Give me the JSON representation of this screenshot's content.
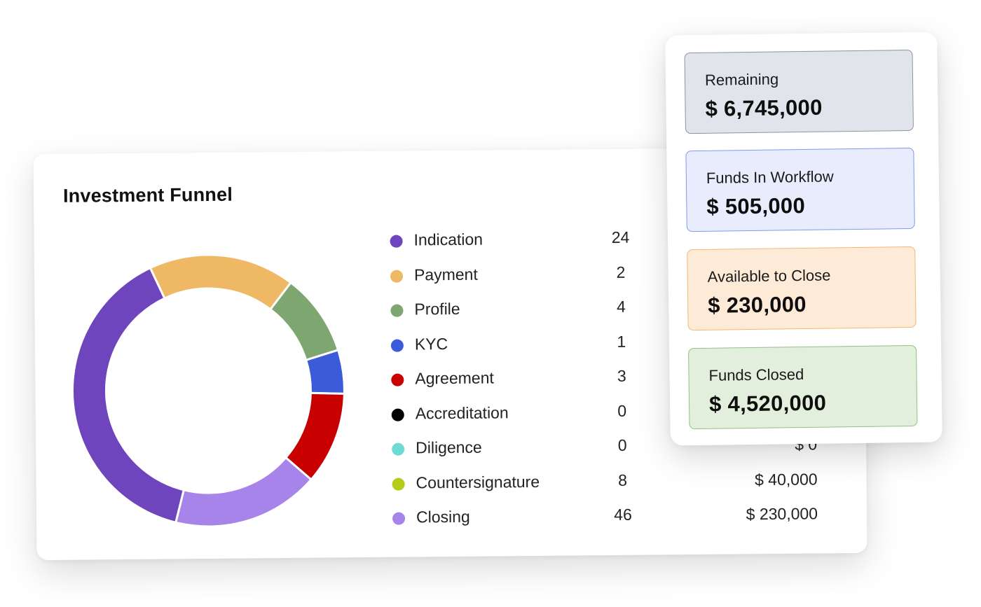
{
  "funnel": {
    "title": "Investment Funnel",
    "stages": [
      {
        "name": "Indication",
        "count": "24",
        "amount": "",
        "color": "#6f45bd"
      },
      {
        "name": "Payment",
        "count": "2",
        "amount": "",
        "color": "#efb865"
      },
      {
        "name": "Profile",
        "count": "4",
        "amount": "",
        "color": "#7ea670"
      },
      {
        "name": "KYC",
        "count": "1",
        "amount": "",
        "color": "#3b5bdb"
      },
      {
        "name": "Agreement",
        "count": "3",
        "amount": "",
        "color": "#c90000"
      },
      {
        "name": "Accreditation",
        "count": "0",
        "amount": "",
        "color": "#000000"
      },
      {
        "name": "Diligence",
        "count": "0",
        "amount": "$ 0",
        "color": "#6fdad4"
      },
      {
        "name": "Countersignature",
        "count": "8",
        "amount": "$ 40,000",
        "color": "#b5cc1a"
      },
      {
        "name": "Closing",
        "count": "46",
        "amount": "$ 230,000",
        "color": "#a784ea"
      }
    ]
  },
  "chart_data": {
    "type": "pie",
    "categories": [
      "Indication",
      "Payment",
      "Profile",
      "KYC",
      "Agreement",
      "Accreditation",
      "Diligence",
      "Countersignature",
      "Closing"
    ],
    "values": [
      39.1,
      17.4,
      9.8,
      5.2,
      11.0,
      0,
      0,
      0,
      17.5
    ],
    "colors": [
      "#6f45bd",
      "#efb865",
      "#7ea670",
      "#3b5bdb",
      "#c90000",
      "#000000",
      "#6fdad4",
      "#b5cc1a",
      "#a784ea"
    ]
  },
  "summary": {
    "remaining_label": "Remaining",
    "remaining_value": "$ 6,745,000",
    "workflow_label": "Funds In Workflow",
    "workflow_value": "$ 505,000",
    "available_label": "Available to Close",
    "available_value": "$ 230,000",
    "closed_label": "Funds Closed",
    "closed_value": "$ 4,520,000"
  }
}
